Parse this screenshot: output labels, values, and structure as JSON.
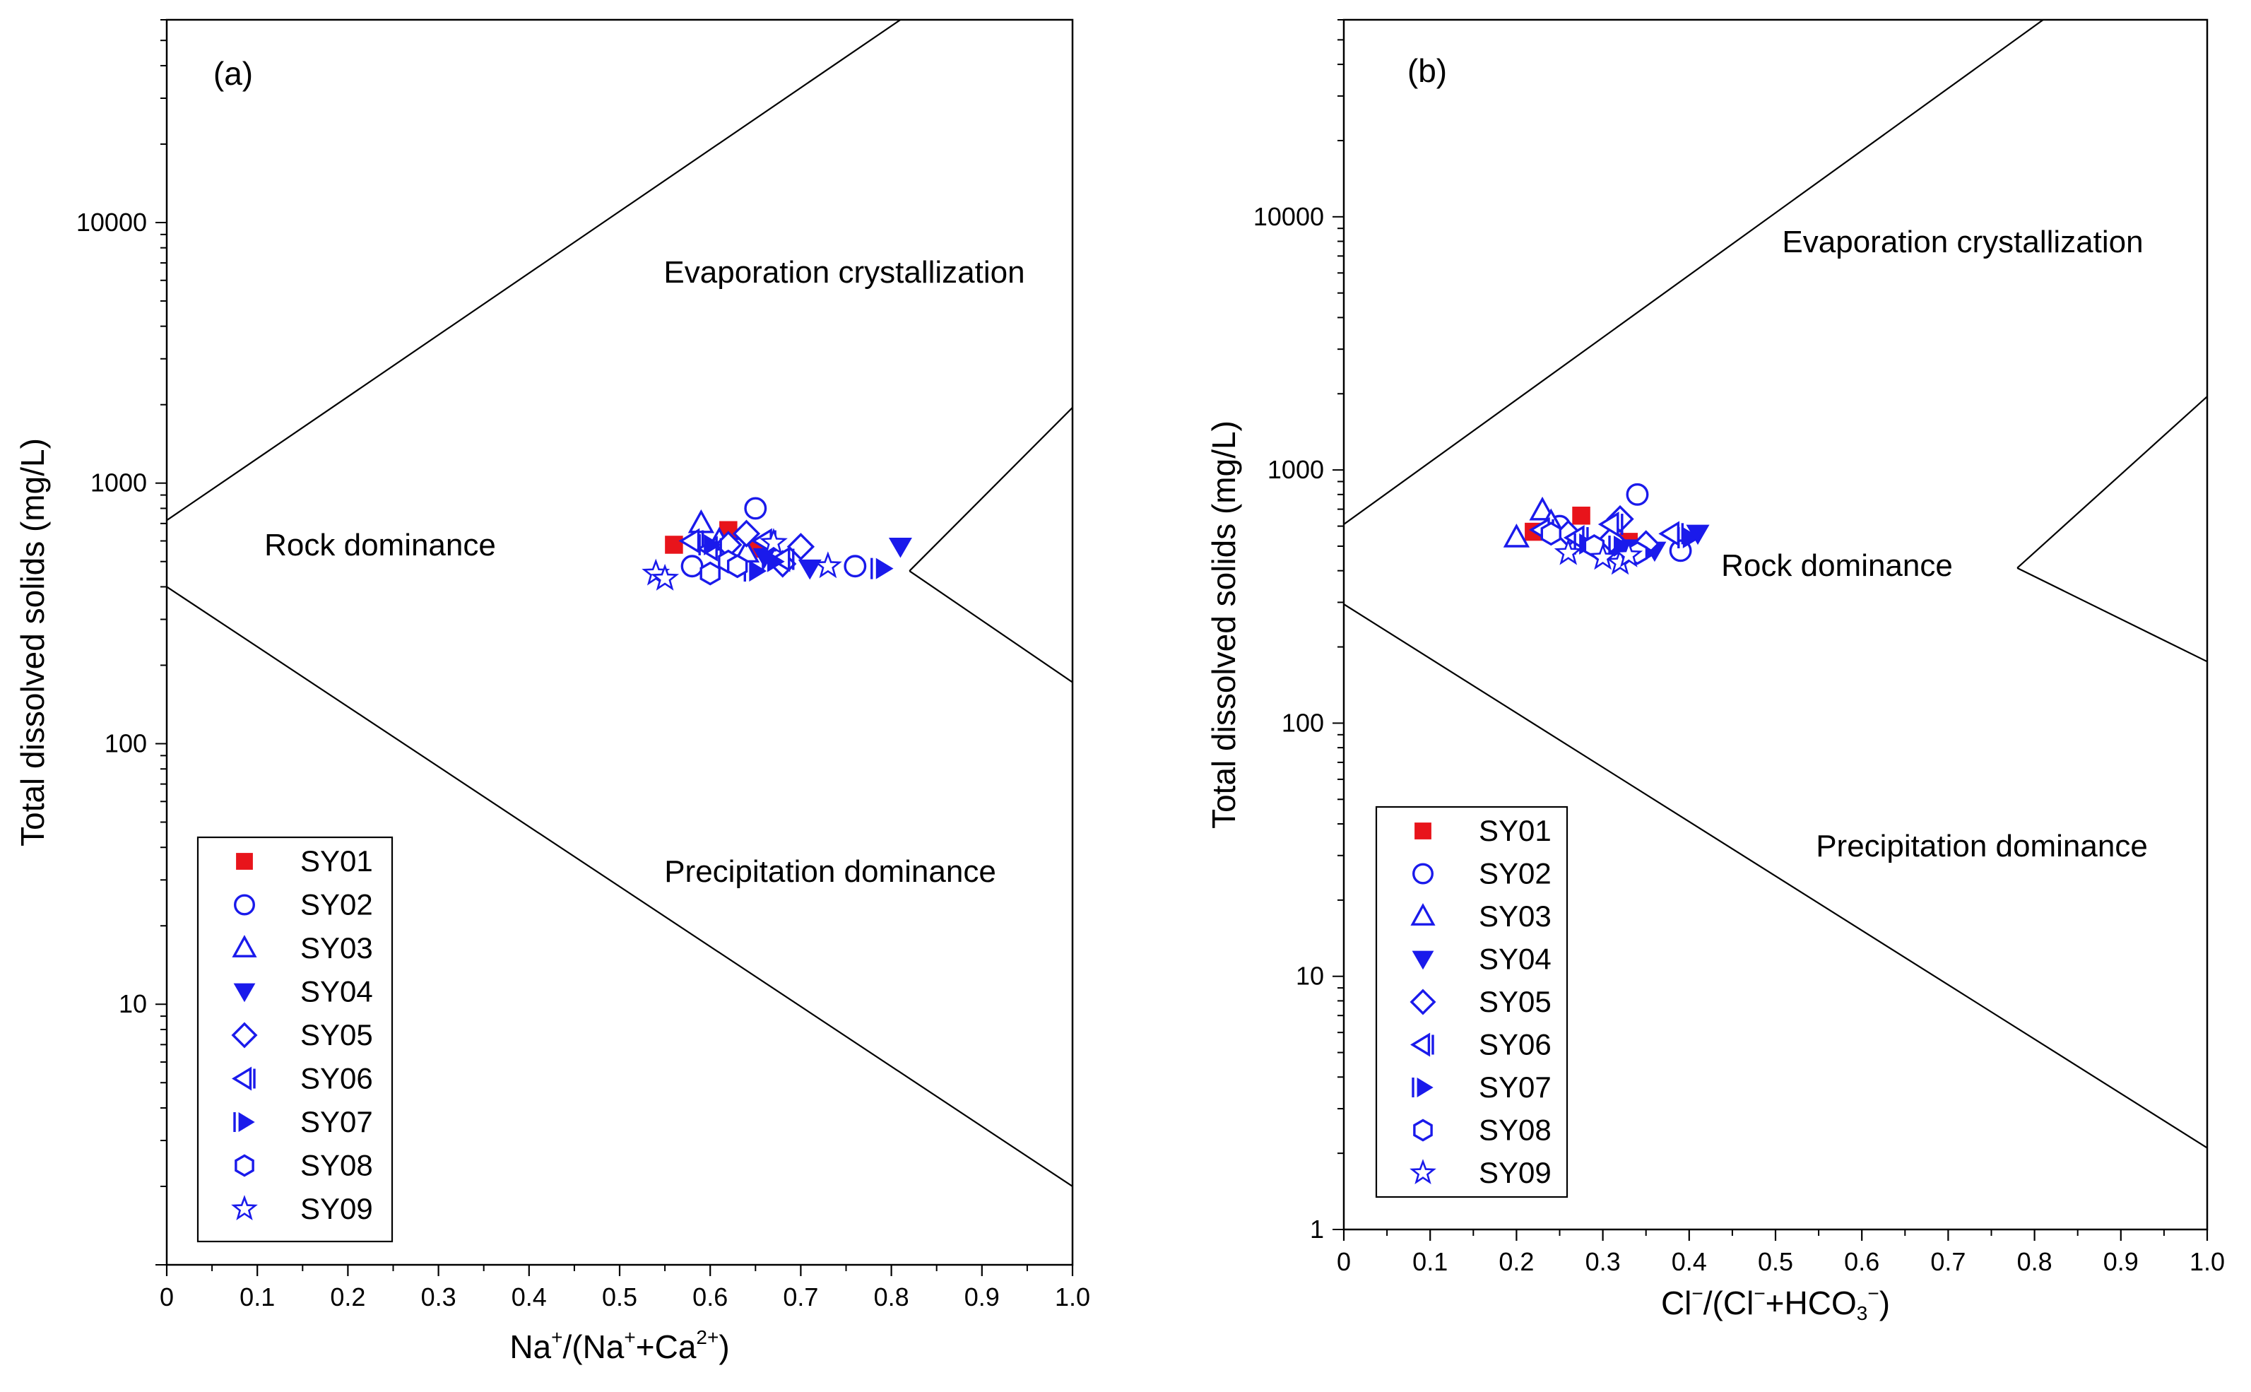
{
  "colors": {
    "sy01": "#e8141b",
    "blue": "#1a1aeb",
    "axis": "#000000"
  },
  "legend_labels": [
    "SY01",
    "SY02",
    "SY03",
    "SY04",
    "SY05",
    "SY06",
    "SY07",
    "SY08",
    "SY09"
  ],
  "legend_symbols": [
    "filled-square",
    "open-circle",
    "open-triangle-up",
    "filled-triangle-down",
    "open-diamond",
    "open-triangle-left",
    "filled-triangle-right",
    "open-hexagon",
    "open-star"
  ],
  "chart_data": [
    {
      "type": "scatter",
      "panel_label": "(a)",
      "xlabel": "Na+/(Na++Ca2+)",
      "ylabel": "Total dissolved solids (mg/L)",
      "xlim": [
        0,
        1.0
      ],
      "ylim": [
        1,
        60000
      ],
      "yscale": "log",
      "x_ticks": [
        "0",
        "0.1",
        "0.2",
        "0.3",
        "0.4",
        "0.5",
        "0.6",
        "0.7",
        "0.8",
        "0.9",
        "1.0"
      ],
      "y_ticks": [
        {
          "v": 10,
          "label": "10"
        },
        {
          "v": 100,
          "label": "100"
        },
        {
          "v": 1000,
          "label": "1000"
        },
        {
          "v": 10000,
          "label": "10000"
        }
      ],
      "grid": false,
      "legend_position": "bottom-left",
      "regions": [
        "Evaporation crystallization",
        "Rock dominance",
        "Precipitation dominance"
      ],
      "boundaries": [
        {
          "name": "upper",
          "points": [
            [
              0.0,
              720
            ],
            [
              0.81,
              60000
            ]
          ]
        },
        {
          "name": "lower",
          "points": [
            [
              0.0,
              400
            ],
            [
              1.0,
              2.0
            ]
          ]
        },
        {
          "name": "right-upper",
          "points": [
            [
              0.82,
              460
            ],
            [
              1.0,
              1950
            ]
          ]
        },
        {
          "name": "right-lower",
          "points": [
            [
              0.82,
              460
            ],
            [
              1.0,
              172
            ]
          ]
        }
      ],
      "series": [
        {
          "name": "SY01",
          "values": [
            [
              0.56,
              580
            ],
            [
              0.62,
              660
            ],
            [
              0.65,
              560
            ]
          ]
        },
        {
          "name": "SY02",
          "values": [
            [
              0.65,
              800
            ],
            [
              0.58,
              480
            ],
            [
              0.63,
              560
            ],
            [
              0.76,
              480
            ]
          ]
        },
        {
          "name": "SY03",
          "values": [
            [
              0.59,
              700
            ],
            [
              0.61,
              600
            ],
            [
              0.64,
              540
            ]
          ]
        },
        {
          "name": "SY04",
          "values": [
            [
              0.81,
              570
            ],
            [
              0.71,
              470
            ],
            [
              0.66,
              520
            ]
          ]
        },
        {
          "name": "SY05",
          "values": [
            [
              0.64,
              640
            ],
            [
              0.7,
              570
            ],
            [
              0.68,
              490
            ],
            [
              0.62,
              580
            ]
          ]
        },
        {
          "name": "SY06",
          "values": [
            [
              0.58,
              600
            ],
            [
              0.6,
              560
            ],
            [
              0.66,
              600
            ],
            [
              0.68,
              510
            ]
          ]
        },
        {
          "name": "SY07",
          "values": [
            [
              0.79,
              470
            ],
            [
              0.65,
              460
            ],
            [
              0.67,
              500
            ],
            [
              0.6,
              580
            ]
          ]
        },
        {
          "name": "SY08",
          "values": [
            [
              0.6,
              450
            ],
            [
              0.62,
              500
            ],
            [
              0.63,
              480
            ]
          ]
        },
        {
          "name": "SY09",
          "values": [
            [
              0.54,
              450
            ],
            [
              0.55,
              430
            ],
            [
              0.73,
              480
            ],
            [
              0.67,
              590
            ]
          ]
        }
      ]
    },
    {
      "type": "scatter",
      "panel_label": "(b)",
      "xlabel": "Cl−/(Cl−+HCO3−)",
      "ylabel": "Total dissolved solids (mg/L)",
      "xlim": [
        0,
        1.0
      ],
      "ylim": [
        1,
        60000
      ],
      "yscale": "log",
      "x_ticks": [
        "0",
        "0.1",
        "0.2",
        "0.3",
        "0.4",
        "0.5",
        "0.6",
        "0.7",
        "0.8",
        "0.9",
        "1.0"
      ],
      "y_ticks": [
        {
          "v": 1,
          "label": "1"
        },
        {
          "v": 10,
          "label": "10"
        },
        {
          "v": 100,
          "label": "100"
        },
        {
          "v": 1000,
          "label": "1000"
        },
        {
          "v": 10000,
          "label": "10000"
        }
      ],
      "grid": false,
      "legend_position": "bottom-left",
      "regions": [
        "Evaporation crystallization",
        "Rock dominance",
        "Precipitation dominance"
      ],
      "boundaries": [
        {
          "name": "upper",
          "points": [
            [
              0.0,
              610
            ],
            [
              0.81,
              60000
            ]
          ]
        },
        {
          "name": "lower",
          "points": [
            [
              0.0,
              295
            ],
            [
              1.0,
              2.1
            ]
          ]
        },
        {
          "name": "right-upper",
          "points": [
            [
              0.78,
              410
            ],
            [
              1.0,
              1950
            ]
          ]
        },
        {
          "name": "right-lower",
          "points": [
            [
              0.78,
              410
            ],
            [
              1.0,
              175
            ]
          ]
        }
      ],
      "series": [
        {
          "name": "SY01",
          "values": [
            [
              0.22,
              570
            ],
            [
              0.275,
              660
            ],
            [
              0.33,
              520
            ]
          ]
        },
        {
          "name": "SY02",
          "values": [
            [
              0.34,
              800
            ],
            [
              0.25,
              600
            ],
            [
              0.3,
              480
            ],
            [
              0.39,
              480
            ]
          ]
        },
        {
          "name": "SY03",
          "values": [
            [
              0.2,
              540
            ],
            [
              0.23,
              690
            ],
            [
              0.24,
              620
            ]
          ]
        },
        {
          "name": "SY04",
          "values": [
            [
              0.41,
              560
            ],
            [
              0.33,
              490
            ],
            [
              0.36,
              480
            ]
          ]
        },
        {
          "name": "SY05",
          "values": [
            [
              0.32,
              640
            ],
            [
              0.26,
              560
            ],
            [
              0.31,
              530
            ],
            [
              0.35,
              510
            ]
          ]
        },
        {
          "name": "SY06",
          "values": [
            [
              0.38,
              560
            ],
            [
              0.23,
              580
            ],
            [
              0.27,
              540
            ],
            [
              0.31,
              610
            ]
          ]
        },
        {
          "name": "SY07",
          "values": [
            [
              0.4,
              540
            ],
            [
              0.35,
              470
            ],
            [
              0.28,
              510
            ],
            [
              0.32,
              500
            ]
          ]
        },
        {
          "name": "SY08",
          "values": [
            [
              0.24,
              560
            ],
            [
              0.29,
              500
            ],
            [
              0.34,
              470
            ]
          ]
        },
        {
          "name": "SY09",
          "values": [
            [
              0.26,
              470
            ],
            [
              0.32,
              430
            ],
            [
              0.3,
              450
            ],
            [
              0.33,
              460
            ]
          ]
        }
      ]
    }
  ]
}
